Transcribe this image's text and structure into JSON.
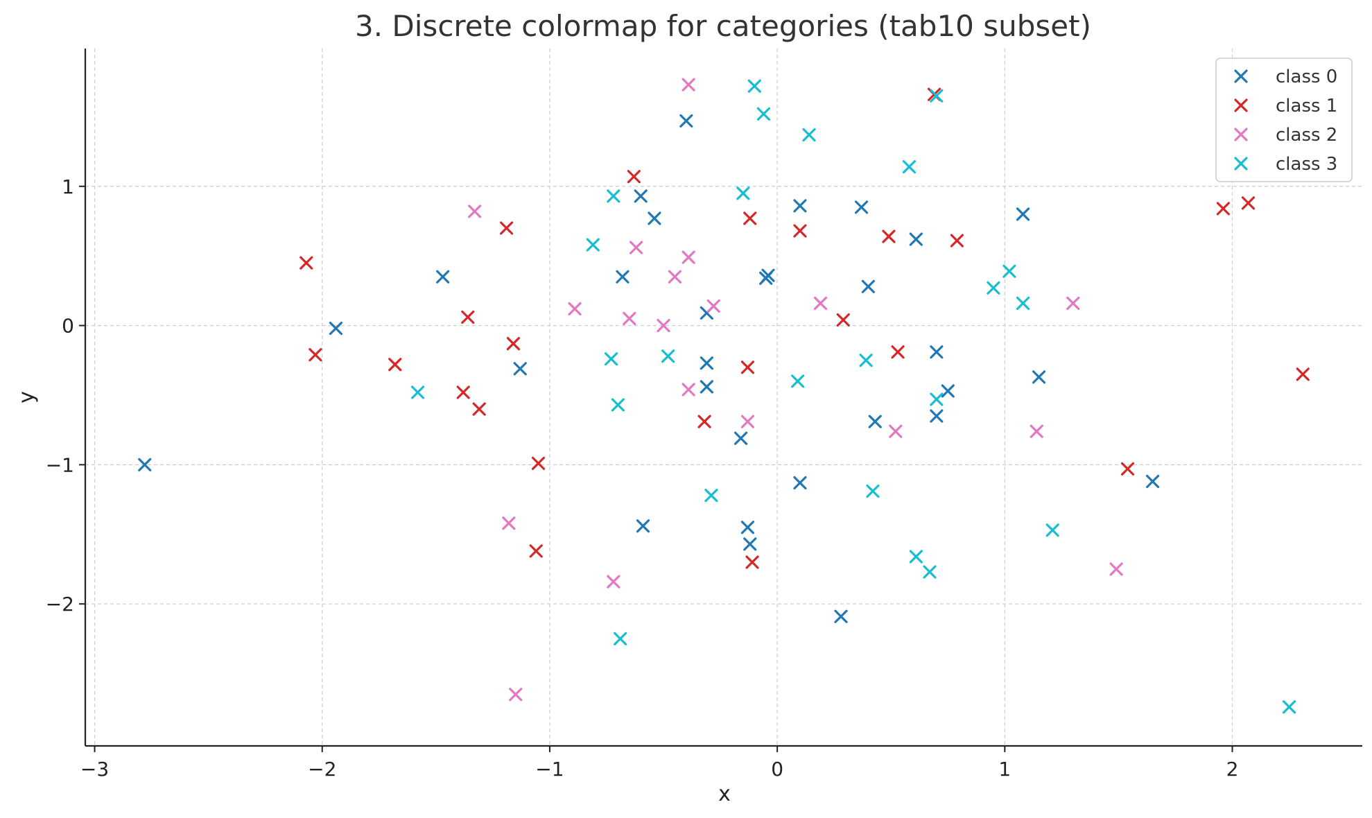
{
  "chart_data": {
    "type": "scatter",
    "title": "3. Discrete colormap for categories (tab10 subset)",
    "xlabel": "x",
    "ylabel": "y",
    "xlim": [
      -3.02,
      2.55
    ],
    "ylim": [
      -2.97,
      1.95
    ],
    "xticks": [
      -3,
      -2,
      -1,
      0,
      1,
      2
    ],
    "yticks": [
      -2,
      -1,
      0,
      1
    ],
    "xtick_labels": [
      "−3",
      "−2",
      "−1",
      "0",
      "1",
      "2"
    ],
    "ytick_labels": [
      "−2",
      "−1",
      "0",
      "1"
    ],
    "grid": true,
    "marker": "x",
    "legend_position": "top-right",
    "series": [
      {
        "name": "class 0",
        "color": "#1f77b4",
        "points": [
          [
            -2.78,
            -1.0
          ],
          [
            -1.94,
            -0.02
          ],
          [
            -1.47,
            0.35
          ],
          [
            -1.13,
            -0.31
          ],
          [
            -0.59,
            -1.44
          ],
          [
            -0.6,
            0.93
          ],
          [
            -0.54,
            0.77
          ],
          [
            -0.68,
            0.35
          ],
          [
            -0.4,
            1.47
          ],
          [
            -0.31,
            0.09
          ],
          [
            -0.31,
            -0.27
          ],
          [
            -0.31,
            -0.44
          ],
          [
            -0.16,
            -0.81
          ],
          [
            -0.13,
            -1.45
          ],
          [
            -0.12,
            -1.57
          ],
          [
            -0.05,
            0.34
          ],
          [
            -0.04,
            0.36
          ],
          [
            0.1,
            0.86
          ],
          [
            0.1,
            -1.13
          ],
          [
            0.28,
            -2.09
          ],
          [
            0.37,
            0.85
          ],
          [
            0.4,
            0.28
          ],
          [
            0.43,
            -0.69
          ],
          [
            0.61,
            0.62
          ],
          [
            0.7,
            -0.19
          ],
          [
            0.7,
            -0.65
          ],
          [
            0.75,
            -0.47
          ],
          [
            1.08,
            0.8
          ],
          [
            1.15,
            -0.37
          ],
          [
            1.65,
            -1.12
          ]
        ]
      },
      {
        "name": "class 1",
        "color": "#d62728",
        "points": [
          [
            -2.07,
            0.45
          ],
          [
            -2.03,
            -0.21
          ],
          [
            -1.68,
            -0.28
          ],
          [
            -1.38,
            -0.48
          ],
          [
            -1.36,
            0.06
          ],
          [
            -1.31,
            -0.6
          ],
          [
            -1.19,
            0.7
          ],
          [
            -1.16,
            -0.13
          ],
          [
            -1.05,
            -0.99
          ],
          [
            -1.06,
            -1.62
          ],
          [
            -0.63,
            1.07
          ],
          [
            -0.32,
            -0.69
          ],
          [
            -0.13,
            -0.3
          ],
          [
            -0.12,
            0.77
          ],
          [
            -0.11,
            -1.7
          ],
          [
            0.1,
            0.68
          ],
          [
            0.29,
            0.04
          ],
          [
            0.49,
            0.64
          ],
          [
            0.53,
            -0.19
          ],
          [
            0.69,
            1.66
          ],
          [
            0.79,
            0.61
          ],
          [
            1.54,
            -1.03
          ],
          [
            1.96,
            0.84
          ],
          [
            2.07,
            0.88
          ],
          [
            2.31,
            -0.35
          ]
        ]
      },
      {
        "name": "class 2",
        "color": "#e377c2",
        "points": [
          [
            -1.33,
            0.82
          ],
          [
            -1.18,
            -1.42
          ],
          [
            -1.15,
            -2.65
          ],
          [
            -0.89,
            0.12
          ],
          [
            -0.72,
            -1.84
          ],
          [
            -0.65,
            0.05
          ],
          [
            -0.62,
            0.56
          ],
          [
            -0.5,
            0.0
          ],
          [
            -0.45,
            0.35
          ],
          [
            -0.39,
            1.73
          ],
          [
            -0.39,
            0.49
          ],
          [
            -0.39,
            -0.46
          ],
          [
            -0.28,
            0.14
          ],
          [
            -0.13,
            -0.69
          ],
          [
            0.19,
            0.16
          ],
          [
            0.52,
            -0.76
          ],
          [
            1.14,
            -0.76
          ],
          [
            1.3,
            0.16
          ],
          [
            1.49,
            -1.75
          ]
        ]
      },
      {
        "name": "class 3",
        "color": "#17becf",
        "points": [
          [
            -1.58,
            -0.48
          ],
          [
            -0.81,
            0.58
          ],
          [
            -0.73,
            -0.24
          ],
          [
            -0.72,
            0.93
          ],
          [
            -0.7,
            -0.57
          ],
          [
            -0.69,
            -2.25
          ],
          [
            -0.48,
            -0.22
          ],
          [
            -0.29,
            -1.22
          ],
          [
            -0.15,
            0.95
          ],
          [
            -0.1,
            1.72
          ],
          [
            -0.06,
            1.52
          ],
          [
            0.09,
            -0.4
          ],
          [
            0.14,
            1.37
          ],
          [
            0.39,
            -0.25
          ],
          [
            0.42,
            -1.19
          ],
          [
            0.58,
            1.14
          ],
          [
            0.61,
            -1.66
          ],
          [
            0.67,
            -1.77
          ],
          [
            0.7,
            -0.53
          ],
          [
            0.7,
            1.65
          ],
          [
            0.95,
            0.27
          ],
          [
            1.02,
            0.39
          ],
          [
            1.08,
            0.16
          ],
          [
            1.21,
            -1.47
          ],
          [
            2.25,
            -2.74
          ]
        ]
      }
    ]
  }
}
